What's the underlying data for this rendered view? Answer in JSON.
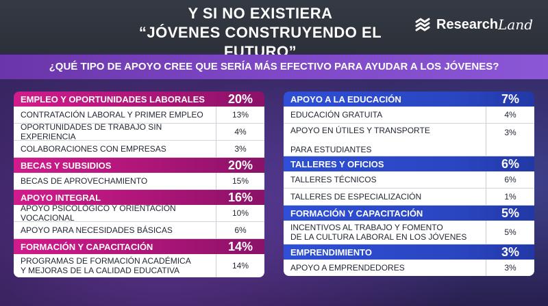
{
  "header": {
    "title_line1": "Y SI NO EXISTIERA",
    "title_line2": "“JÓVENES CONSTRUYENDO EL FUTURO”",
    "logo_part1": "Research",
    "logo_part2": "Land",
    "logo_icon": "researchland-logo-icon"
  },
  "question": "¿QUÉ TIPO DE APOYO CREE QUE SERÍA MÁS EFECTIVO PARA AYUDAR A LOS JÓVENES?",
  "colors": {
    "left_category": "#d21b8c",
    "right_category": "#2e4fd6",
    "question_bar": "#7d46c4",
    "header": "#343a44"
  },
  "left": [
    {
      "label": "EMPLEO Y OPORTUNIDADES LABORALES",
      "pct": "20%",
      "items": [
        {
          "label": "CONTRATACIÓN LABORAL Y PRIMER EMPLEO",
          "pct": "13%"
        },
        {
          "label": "OPORTUNIDADES DE TRABAJO SIN EXPERIENCIA",
          "pct": "4%"
        },
        {
          "label": "COLABORACIONES CON EMPRESAS",
          "pct": "3%"
        }
      ]
    },
    {
      "label": "BECAS Y SUBSIDIOS",
      "pct": "20%",
      "items": [
        {
          "label": "BECAS DE APROVECHAMIENTO",
          "pct": "15%"
        }
      ]
    },
    {
      "label": "APOYO INTEGRAL",
      "pct": "16%",
      "items": [
        {
          "label": "APOYO PSICOLÓGICO Y ORIENTACIÓN VOCACIONAL",
          "pct": "10%"
        },
        {
          "label": "APOYO PARA NECESIDADES BÁSICAS",
          "pct": "6%"
        }
      ]
    },
    {
      "label": "FORMACIÓN Y CAPACITACIÓN",
      "pct": "14%",
      "items": [
        {
          "line1": "PROGRAMAS DE FORMACIÓN ACADÉMICA",
          "line2": "Y MEJORAS DE LA CALIDAD EDUCATIVA",
          "pct": "14%"
        }
      ]
    }
  ],
  "right": [
    {
      "label": "APOYO A LA EDUCACIÓN",
      "pct": "7%",
      "items": [
        {
          "label": "EDUCACIÓN GRATUITA",
          "pct": "4%"
        },
        {
          "line1": "APOYO EN ÚTILES Y TRANSPORTE",
          "line2": "PARA ESTUDIANTES",
          "pct": "3%"
        }
      ]
    },
    {
      "label": "TALLERES Y OFICIOS",
      "pct": "6%",
      "items": [
        {
          "label": "TALLERES TÉCNICOS",
          "pct": "6%"
        },
        {
          "label": "TALLERES DE ESPECIALIZACIÓN",
          "pct": "1%"
        }
      ]
    },
    {
      "label": "FORMACIÓN Y CAPACITACIÓN",
      "pct": "5%",
      "items": [
        {
          "line1": "INCENTIVOS AL TRABAJO Y FOMENTO",
          "line2": "DE LA CULTURA LABORAL EN LOS JÓVENES",
          "pct": "5%"
        }
      ]
    },
    {
      "label": "EMPRENDIMIENTO",
      "pct": "3%",
      "items": [
        {
          "label": "APOYO A EMPRENDEDORES",
          "pct": "3%"
        }
      ]
    }
  ]
}
